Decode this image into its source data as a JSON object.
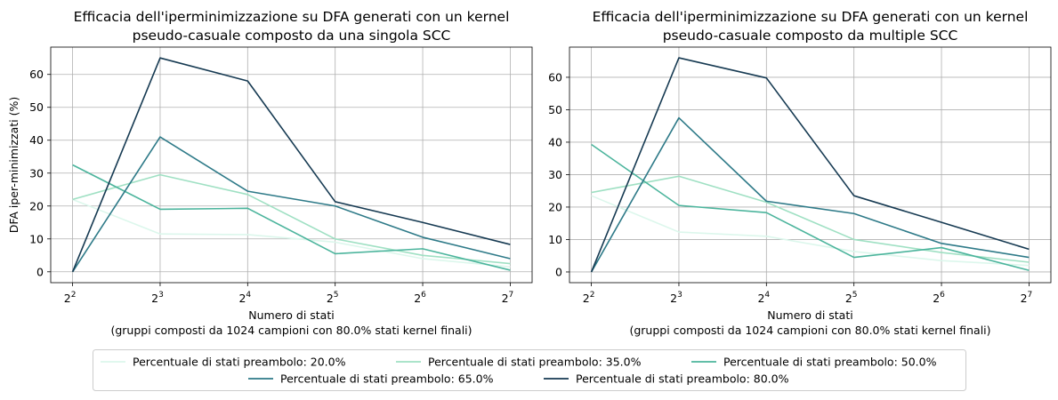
{
  "chart_data": [
    {
      "type": "line",
      "title_lines": [
        "Efficacia dell'iperminimizzazione su DFA generati con un kernel",
        "pseudo-casuale composto da una singola SCC"
      ],
      "xlabel_lines": [
        "Numero di stati",
        "(gruppi composti da 1024 campioni con 80.0% stati kernel finali)"
      ],
      "ylabel": "DFA iper-minimizzati (%)",
      "x_exponents": [
        2,
        3,
        4,
        5,
        6,
        7
      ],
      "x_tick_base": "2",
      "x_tick_exponents": [
        "2",
        "3",
        "4",
        "5",
        "6",
        "7"
      ],
      "y_ticks": [
        0,
        10,
        20,
        30,
        40,
        50,
        60
      ],
      "y_tick_labels": [
        "0",
        "10",
        "20",
        "30",
        "40",
        "50",
        "60"
      ],
      "ylim": [
        -3.3,
        68.3
      ],
      "grid": true,
      "series": [
        {
          "name": "Percentuale di stati preambolo: 20.0%",
          "color": "#dcf7ec",
          "values": [
            22.0,
            11.5,
            11.3,
            9.0,
            4.0,
            1.5
          ]
        },
        {
          "name": "Percentuale di stati preambolo: 35.0%",
          "color": "#9fe0c3",
          "values": [
            22.0,
            29.5,
            23.5,
            10.0,
            5.0,
            2.5
          ]
        },
        {
          "name": "Percentuale di stati preambolo: 50.0%",
          "color": "#4bb49c",
          "values": [
            32.5,
            19.0,
            19.3,
            5.5,
            7.0,
            0.5
          ]
        },
        {
          "name": "Percentuale di stati preambolo: 65.0%",
          "color": "#2e7a88",
          "values": [
            0.0,
            41.0,
            24.5,
            20.0,
            10.5,
            4.0
          ]
        },
        {
          "name": "Percentuale di stati preambolo: 80.0%",
          "color": "#163a52",
          "values": [
            0.0,
            65.0,
            58.0,
            21.3,
            15.0,
            8.3
          ]
        }
      ]
    },
    {
      "type": "line",
      "title_lines": [
        "Efficacia dell'iperminimizzazione su DFA generati con un kernel",
        "pseudo-casuale composto da multiple SCC"
      ],
      "xlabel_lines": [
        "Numero di stati",
        "(gruppi composti da 1024 campioni con 80.0% stati kernel finali)"
      ],
      "ylabel": "",
      "x_exponents": [
        2,
        3,
        4,
        5,
        6,
        7
      ],
      "x_tick_base": "2",
      "x_tick_exponents": [
        "2",
        "3",
        "4",
        "5",
        "6",
        "7"
      ],
      "y_ticks": [
        0,
        10,
        20,
        30,
        40,
        50,
        60
      ],
      "y_tick_labels": [
        "0",
        "10",
        "20",
        "30",
        "40",
        "50",
        "60"
      ],
      "ylim": [
        -3.3,
        69.3
      ],
      "grid": true,
      "series": [
        {
          "name": "Percentuale di stati preambolo: 20.0%",
          "color": "#dcf7ec",
          "values": [
            23.5,
            12.3,
            11.0,
            6.3,
            3.5,
            2.0
          ]
        },
        {
          "name": "Percentuale di stati preambolo: 35.0%",
          "color": "#9fe0c3",
          "values": [
            24.5,
            29.5,
            21.5,
            10.0,
            6.0,
            3.0
          ]
        },
        {
          "name": "Percentuale di stati preambolo: 50.0%",
          "color": "#4bb49c",
          "values": [
            39.3,
            20.5,
            18.3,
            4.5,
            7.5,
            0.5
          ]
        },
        {
          "name": "Percentuale di stati preambolo: 65.0%",
          "color": "#2e7a88",
          "values": [
            0.0,
            47.5,
            21.8,
            18.0,
            8.8,
            4.5
          ]
        },
        {
          "name": "Percentuale di stati preambolo: 80.0%",
          "color": "#163a52",
          "values": [
            0.0,
            66.0,
            59.8,
            23.5,
            15.3,
            7.0
          ]
        }
      ]
    }
  ],
  "legend": {
    "placement": "bottom-center",
    "entries": [
      {
        "label": "Percentuale di stati preambolo: 20.0%",
        "color": "#dcf7ec"
      },
      {
        "label": "Percentuale di stati preambolo: 35.0%",
        "color": "#9fe0c3"
      },
      {
        "label": "Percentuale di stati preambolo: 50.0%",
        "color": "#4bb49c"
      },
      {
        "label": "Percentuale di stati preambolo: 65.0%",
        "color": "#2e7a88"
      },
      {
        "label": "Percentuale di stati preambolo: 80.0%",
        "color": "#163a52"
      }
    ]
  }
}
